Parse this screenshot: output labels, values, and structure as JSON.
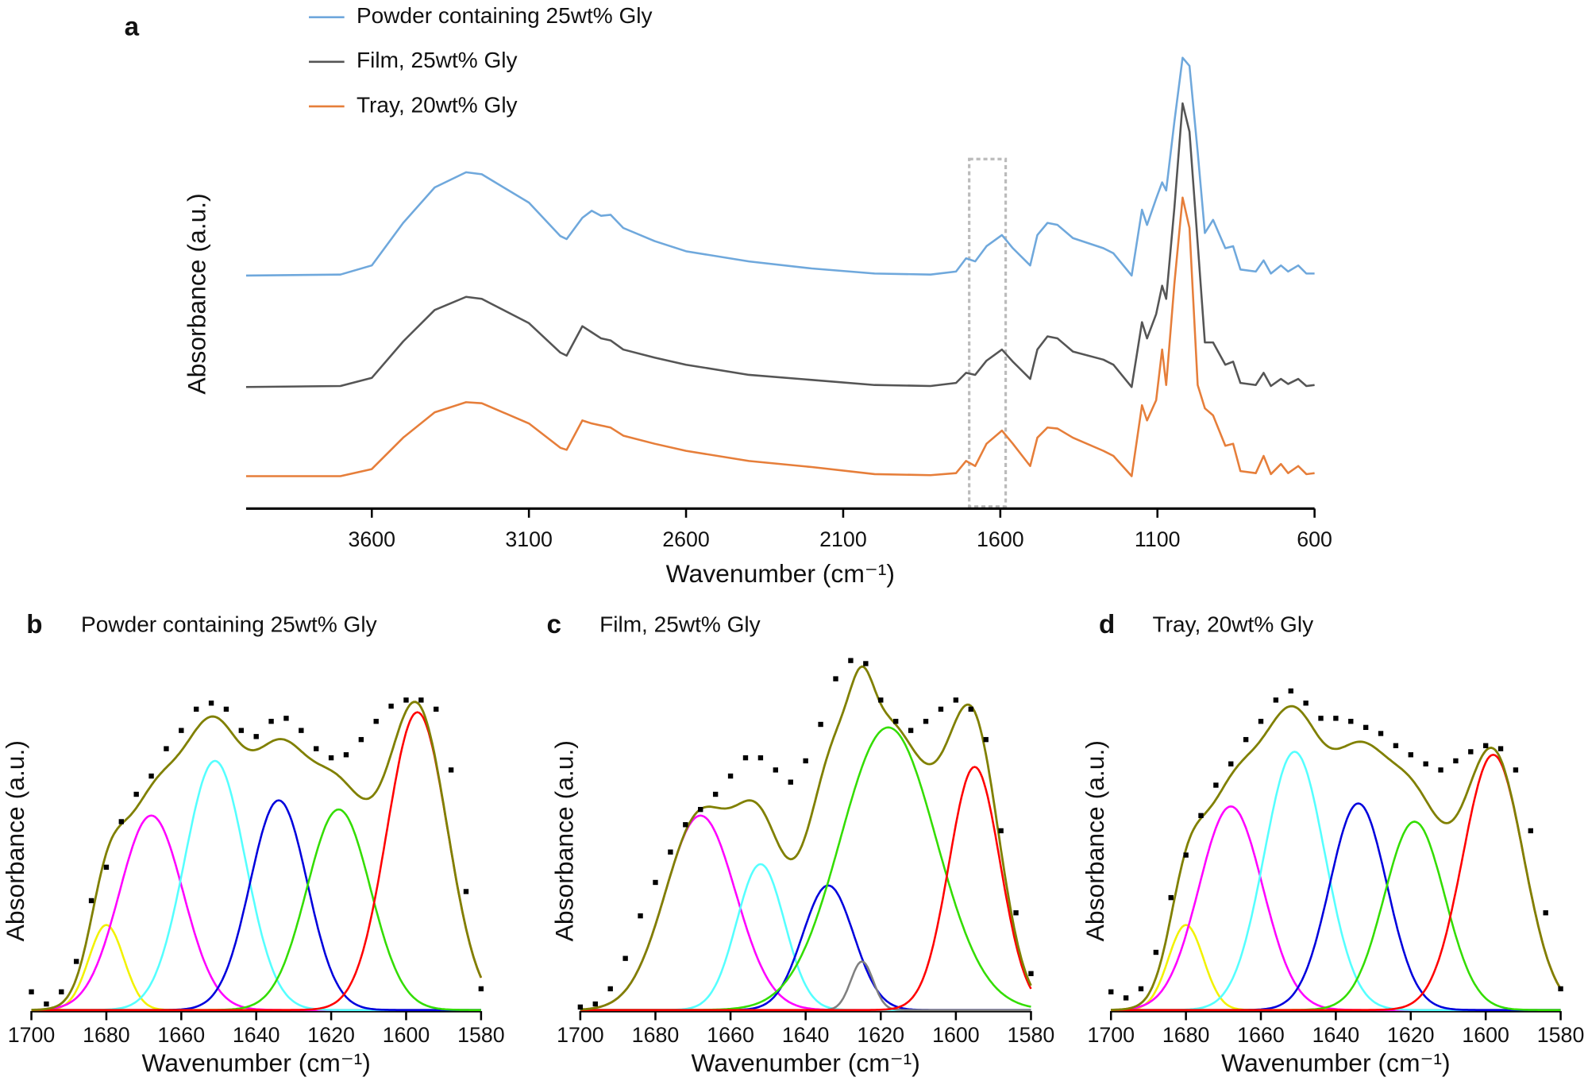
{
  "chart_data": [
    {
      "type": "line",
      "label": "a",
      "xlabel": "Wavenumber (cm⁻¹)",
      "ylabel": "Absorbance (a.u.)",
      "xlim": [
        4000,
        600
      ],
      "xticks": [
        3600,
        3100,
        2600,
        2100,
        1600,
        1100,
        600
      ],
      "ylim": [
        0,
        4.7
      ],
      "legend": "top-left",
      "x": [
        4000,
        3700,
        3600,
        3500,
        3400,
        3300,
        3250,
        3100,
        3000,
        2980,
        2930,
        2900,
        2870,
        2840,
        2800,
        2700,
        2600,
        2400,
        2200,
        2000,
        1822,
        1741,
        1709,
        1680,
        1644,
        1595,
        1560,
        1505,
        1482,
        1450,
        1418,
        1369,
        1272,
        1240,
        1182,
        1149,
        1133,
        1104,
        1085,
        1072,
        1046,
        1020,
        998,
        972,
        949,
        923,
        884,
        859,
        836,
        787,
        762,
        739,
        707,
        684,
        652,
        626,
        600
      ],
      "series": [
        {
          "name": "Powder containing 25wt% Gly",
          "color": "#6fa8dc",
          "values": [
            2.28,
            2.29,
            2.38,
            2.8,
            3.15,
            3.3,
            3.28,
            3.0,
            2.67,
            2.64,
            2.85,
            2.92,
            2.87,
            2.88,
            2.75,
            2.62,
            2.52,
            2.42,
            2.35,
            2.3,
            2.29,
            2.32,
            2.45,
            2.42,
            2.57,
            2.68,
            2.55,
            2.38,
            2.68,
            2.8,
            2.78,
            2.65,
            2.55,
            2.5,
            2.28,
            2.93,
            2.78,
            3.04,
            3.2,
            3.12,
            3.8,
            4.43,
            4.35,
            3.5,
            2.7,
            2.83,
            2.55,
            2.57,
            2.34,
            2.32,
            2.43,
            2.3,
            2.38,
            2.32,
            2.38,
            2.3,
            2.3
          ]
        },
        {
          "name": "Film, 25wt% Gly",
          "color": "#555555",
          "values": [
            1.18,
            1.19,
            1.27,
            1.63,
            1.94,
            2.07,
            2.05,
            1.81,
            1.52,
            1.49,
            1.78,
            1.72,
            1.66,
            1.64,
            1.55,
            1.47,
            1.4,
            1.3,
            1.25,
            1.2,
            1.19,
            1.22,
            1.32,
            1.3,
            1.44,
            1.55,
            1.43,
            1.26,
            1.55,
            1.68,
            1.66,
            1.53,
            1.45,
            1.4,
            1.18,
            1.82,
            1.66,
            1.9,
            2.18,
            2.05,
            2.95,
            3.98,
            3.7,
            2.6,
            1.62,
            1.62,
            1.4,
            1.43,
            1.22,
            1.2,
            1.32,
            1.19,
            1.26,
            1.21,
            1.26,
            1.19,
            1.2
          ]
        },
        {
          "name": "Tray, 20wt% Gly",
          "color": "#e67e3a",
          "values": [
            0.3,
            0.3,
            0.37,
            0.68,
            0.93,
            1.03,
            1.02,
            0.82,
            0.58,
            0.56,
            0.85,
            0.82,
            0.8,
            0.78,
            0.7,
            0.62,
            0.55,
            0.45,
            0.39,
            0.32,
            0.31,
            0.33,
            0.45,
            0.4,
            0.62,
            0.75,
            0.62,
            0.4,
            0.68,
            0.78,
            0.77,
            0.68,
            0.55,
            0.5,
            0.3,
            1.0,
            0.85,
            1.05,
            1.55,
            1.2,
            2.2,
            3.05,
            2.75,
            1.2,
            0.97,
            0.9,
            0.6,
            0.62,
            0.35,
            0.33,
            0.5,
            0.32,
            0.42,
            0.33,
            0.4,
            0.32,
            0.33
          ]
        }
      ]
    },
    {
      "type": "peak-fit",
      "label": "b",
      "title": "Powder containing 25wt% Gly",
      "xlabel": "Wavenumber (cm⁻¹)",
      "ylabel": "Absorbance (a.u.)",
      "xlim": [
        1700,
        1580
      ],
      "xticks": [
        1700,
        1680,
        1660,
        1640,
        1620,
        1600,
        1580
      ],
      "ylim": [
        0,
        1.12
      ],
      "points": {
        "color": "#000000",
        "x": [
          1700,
          1696,
          1692,
          1688,
          1684,
          1680,
          1676,
          1672,
          1668,
          1664,
          1660,
          1656,
          1652,
          1648,
          1644,
          1640,
          1636,
          1632,
          1628,
          1624,
          1620,
          1616,
          1612,
          1608,
          1604,
          1600,
          1596,
          1592,
          1588,
          1584,
          1580
        ],
        "values": [
          0.06,
          0.02,
          0.06,
          0.16,
          0.36,
          0.47,
          0.62,
          0.71,
          0.77,
          0.86,
          0.92,
          0.99,
          1.01,
          0.99,
          0.92,
          0.9,
          0.95,
          0.96,
          0.92,
          0.86,
          0.83,
          0.84,
          0.89,
          0.95,
          1.0,
          1.02,
          1.02,
          0.99,
          0.79,
          0.39,
          0.07
        ]
      },
      "fit_color": "#808000",
      "components": [
        {
          "color": "#f2f200",
          "center": 1680,
          "height": 0.28,
          "fwhm": 11
        },
        {
          "color": "#ff00ff",
          "center": 1668,
          "height": 0.64,
          "fwhm": 20
        },
        {
          "color": "#55ffff",
          "center": 1651,
          "height": 0.82,
          "fwhm": 19
        },
        {
          "color": "#0000dd",
          "center": 1634,
          "height": 0.69,
          "fwhm": 18
        },
        {
          "color": "#33dd00",
          "center": 1618,
          "height": 0.66,
          "fwhm": 20
        },
        {
          "color": "#ff0000",
          "center": 1597,
          "height": 0.98,
          "fwhm": 19
        }
      ]
    },
    {
      "type": "peak-fit",
      "label": "c",
      "title": "Film, 25wt% Gly",
      "xlabel": "Wavenumber (cm⁻¹)",
      "ylabel": "Absorbance (a.u.)",
      "xlim": [
        1700,
        1580
      ],
      "xticks": [
        1700,
        1680,
        1660,
        1640,
        1620,
        1600,
        1580
      ],
      "ylim": [
        0,
        1.12
      ],
      "points": {
        "color": "#000000",
        "x": [
          1700,
          1696,
          1692,
          1688,
          1684,
          1680,
          1676,
          1672,
          1668,
          1664,
          1660,
          1656,
          1652,
          1648,
          1644,
          1640,
          1636,
          1632,
          1628,
          1624,
          1620,
          1616,
          1612,
          1608,
          1604,
          1600,
          1596,
          1592,
          1588,
          1584,
          1580
        ],
        "values": [
          0.01,
          0.02,
          0.07,
          0.17,
          0.31,
          0.42,
          0.52,
          0.61,
          0.66,
          0.71,
          0.77,
          0.83,
          0.83,
          0.79,
          0.75,
          0.82,
          0.94,
          1.09,
          1.15,
          1.14,
          1.02,
          0.95,
          0.92,
          0.95,
          0.99,
          1.02,
          0.99,
          0.89,
          0.59,
          0.32,
          0.12
        ]
      },
      "fit_color": "#808000",
      "components": [
        {
          "color": "#ff00ff",
          "center": 1668,
          "height": 0.64,
          "fwhm": 22
        },
        {
          "color": "#55ffff",
          "center": 1652,
          "height": 0.48,
          "fwhm": 15
        },
        {
          "color": "#0000dd",
          "center": 1634,
          "height": 0.41,
          "fwhm": 16
        },
        {
          "color": "#808080",
          "center": 1625,
          "height": 0.16,
          "fwhm": 7
        },
        {
          "color": "#33dd00",
          "center": 1618,
          "height": 0.93,
          "fwhm": 30
        },
        {
          "color": "#ff0000",
          "center": 1595,
          "height": 0.8,
          "fwhm": 16
        }
      ]
    },
    {
      "type": "peak-fit",
      "label": "d",
      "title": "Tray, 20wt% Gly",
      "xlabel": "Wavenumber (cm⁻¹)",
      "ylabel": "Absorbance (a.u.)",
      "xlim": [
        1700,
        1580
      ],
      "xticks": [
        1700,
        1680,
        1660,
        1640,
        1620,
        1600,
        1580
      ],
      "ylim": [
        0,
        1.12
      ],
      "points": {
        "color": "#000000",
        "x": [
          1700,
          1696,
          1692,
          1688,
          1684,
          1680,
          1676,
          1672,
          1668,
          1664,
          1660,
          1656,
          1652,
          1648,
          1644,
          1640,
          1636,
          1632,
          1628,
          1624,
          1620,
          1616,
          1612,
          1608,
          1604,
          1600,
          1596,
          1592,
          1588,
          1584,
          1580
        ],
        "values": [
          0.06,
          0.04,
          0.07,
          0.19,
          0.37,
          0.51,
          0.64,
          0.74,
          0.81,
          0.89,
          0.95,
          1.02,
          1.05,
          1.01,
          0.96,
          0.96,
          0.95,
          0.93,
          0.91,
          0.87,
          0.84,
          0.81,
          0.79,
          0.82,
          0.85,
          0.87,
          0.86,
          0.79,
          0.59,
          0.32,
          0.07
        ]
      },
      "fit_color": "#808000",
      "components": [
        {
          "color": "#f2f200",
          "center": 1680,
          "height": 0.28,
          "fwhm": 11
        },
        {
          "color": "#ff00ff",
          "center": 1668,
          "height": 0.67,
          "fwhm": 20
        },
        {
          "color": "#55ffff",
          "center": 1651,
          "height": 0.85,
          "fwhm": 19
        },
        {
          "color": "#0000dd",
          "center": 1634,
          "height": 0.68,
          "fwhm": 18
        },
        {
          "color": "#33dd00",
          "center": 1619,
          "height": 0.62,
          "fwhm": 19
        },
        {
          "color": "#ff0000",
          "center": 1598,
          "height": 0.84,
          "fwhm": 19
        }
      ]
    }
  ]
}
